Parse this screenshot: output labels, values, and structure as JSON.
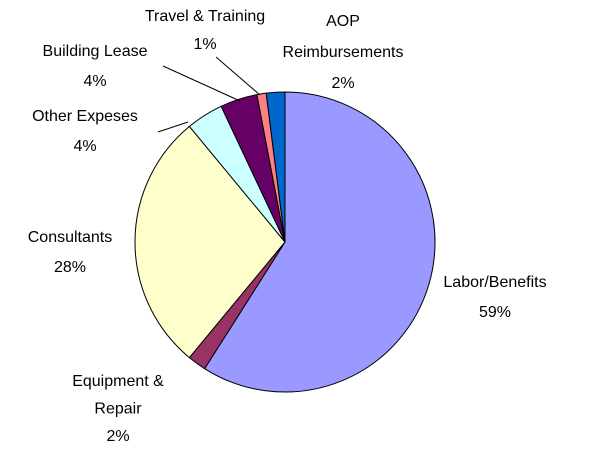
{
  "chart_data": {
    "type": "pie",
    "categories": [
      "Labor/Benefits",
      "Equipment & Repair",
      "Consultants",
      "Other Expeses",
      "Building Lease",
      "Travel & Training",
      "AOP Reimbursements"
    ],
    "values": [
      59,
      2,
      28,
      4,
      4,
      1,
      2
    ],
    "value_labels": [
      "59%",
      "2%",
      "28%",
      "4%",
      "4%",
      "1%",
      "2%"
    ],
    "colors": [
      "#9999ff",
      "#993366",
      "#ffffcc",
      "#ccffff",
      "#660066",
      "#ff8080",
      "#0066cc"
    ]
  }
}
